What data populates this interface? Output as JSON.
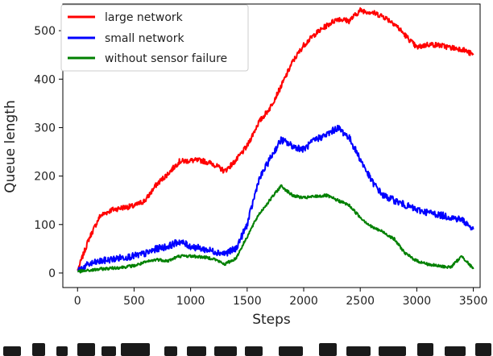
{
  "chart_data": {
    "type": "line",
    "title": "",
    "xlabel": "Steps",
    "ylabel": "Queue length",
    "xlim": [
      -130,
      3560
    ],
    "ylim": [
      -30,
      555
    ],
    "xticks": [
      0,
      500,
      1000,
      1500,
      2000,
      2500,
      3000,
      3500
    ],
    "yticks": [
      0,
      100,
      200,
      300,
      400,
      500
    ],
    "grid": false,
    "legend_position": "top-left",
    "series": [
      {
        "name": "large network",
        "color": "#ff0000",
        "x": [
          0,
          100,
          200,
          300,
          400,
          500,
          600,
          700,
          800,
          900,
          1000,
          1100,
          1200,
          1300,
          1400,
          1500,
          1600,
          1700,
          1800,
          1900,
          2000,
          2100,
          2200,
          2300,
          2400,
          2500,
          2600,
          2700,
          2800,
          2900,
          3000,
          3100,
          3200,
          3300,
          3400,
          3500
        ],
        "values": [
          5,
          70,
          118,
          130,
          135,
          138,
          150,
          183,
          205,
          230,
          232,
          232,
          225,
          210,
          232,
          262,
          310,
          340,
          385,
          435,
          470,
          493,
          510,
          525,
          520,
          542,
          538,
          530,
          515,
          490,
          465,
          472,
          470,
          465,
          462,
          450
        ]
      },
      {
        "name": "small network",
        "color": "#0000ff",
        "x": [
          0,
          100,
          200,
          300,
          400,
          500,
          600,
          700,
          800,
          900,
          1000,
          1100,
          1200,
          1300,
          1400,
          1500,
          1600,
          1700,
          1800,
          1900,
          2000,
          2100,
          2200,
          2300,
          2400,
          2500,
          2600,
          2700,
          2800,
          2900,
          3000,
          3100,
          3200,
          3300,
          3400,
          3500
        ],
        "values": [
          5,
          18,
          24,
          28,
          32,
          35,
          40,
          50,
          55,
          65,
          55,
          50,
          45,
          40,
          50,
          100,
          190,
          235,
          275,
          262,
          255,
          275,
          285,
          300,
          280,
          235,
          190,
          160,
          150,
          140,
          130,
          125,
          120,
          115,
          110,
          90
        ]
      },
      {
        "name": "without sensor failure",
        "color": "#008000",
        "x": [
          0,
          100,
          200,
          300,
          400,
          500,
          600,
          700,
          800,
          900,
          1000,
          1100,
          1200,
          1300,
          1400,
          1500,
          1600,
          1700,
          1800,
          1900,
          2000,
          2100,
          2200,
          2300,
          2400,
          2500,
          2600,
          2700,
          2800,
          2900,
          3000,
          3100,
          3200,
          3300,
          3400,
          3500
        ],
        "values": [
          3,
          5,
          8,
          10,
          12,
          15,
          22,
          28,
          25,
          35,
          35,
          33,
          30,
          18,
          30,
          75,
          120,
          150,
          180,
          160,
          155,
          158,
          160,
          150,
          140,
          115,
          95,
          85,
          70,
          40,
          25,
          18,
          14,
          12,
          35,
          8
        ]
      }
    ]
  }
}
